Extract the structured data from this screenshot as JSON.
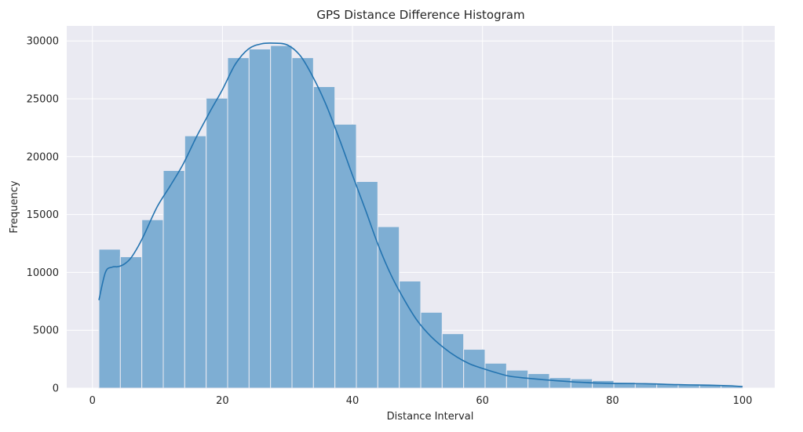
{
  "chart_data": {
    "type": "bar",
    "title": "GPS Distance Difference Histogram",
    "xlabel": "Distance Interval",
    "ylabel": "Frequency",
    "xlim": [
      -3.95,
      104.95
    ],
    "ylim": [
      0,
      31300
    ],
    "xticks": [
      0,
      20,
      40,
      60,
      80,
      100
    ],
    "xtick_labels": [
      "0",
      "20",
      "40",
      "60",
      "80",
      "100"
    ],
    "yticks": [
      0,
      5000,
      10000,
      15000,
      20000,
      25000,
      30000
    ],
    "ytick_labels": [
      "0",
      "5000",
      "10000",
      "15000",
      "20000",
      "25000",
      "30000"
    ],
    "grid": true,
    "bins": {
      "edges": [
        1,
        4.3,
        7.6,
        10.9,
        14.2,
        17.5,
        20.8,
        24.1,
        27.4,
        30.7,
        34.0,
        37.3,
        40.6,
        43.9,
        47.2,
        50.5,
        53.8,
        57.1,
        60.4,
        63.7,
        67.0,
        70.3,
        73.6,
        76.9,
        80.2,
        83.5,
        86.8,
        90.1,
        93.4,
        96.7,
        100
      ],
      "counts": [
        12000,
        11350,
        14550,
        18800,
        21800,
        25050,
        28550,
        29300,
        29600,
        28550,
        26050,
        22800,
        17850,
        13950,
        9250,
        6550,
        4700,
        3350,
        2150,
        1550,
        1250,
        900,
        800,
        650,
        500,
        450,
        350,
        300,
        250,
        200
      ]
    },
    "kde": {
      "x": [
        1,
        2,
        3,
        4,
        5,
        6,
        7,
        8,
        10,
        12,
        14,
        16,
        18,
        20,
        22,
        24,
        26,
        28,
        30,
        32,
        34,
        36,
        38,
        40,
        42,
        44,
        46,
        48,
        50,
        52,
        54,
        56,
        58,
        60,
        62,
        64,
        66,
        70,
        75,
        80,
        85,
        90,
        95,
        98,
        100
      ],
      "y": [
        7600,
        10000,
        10450,
        10500,
        10750,
        11300,
        12200,
        13300,
        15700,
        17500,
        19400,
        21700,
        23800,
        25800,
        28000,
        29300,
        29750,
        29800,
        29650,
        28700,
        26800,
        24400,
        21500,
        18400,
        15400,
        12300,
        9700,
        7600,
        5800,
        4500,
        3500,
        2700,
        2100,
        1700,
        1350,
        1050,
        900,
        700,
        500,
        400,
        380,
        300,
        250,
        200,
        130
      ]
    },
    "colors": {
      "bar_fill": "#7eaed3",
      "bar_edge": "#eaeaf2",
      "kde_line": "#2474b0",
      "plot_bg": "#eaeaf2",
      "grid": "#ffffff"
    }
  }
}
